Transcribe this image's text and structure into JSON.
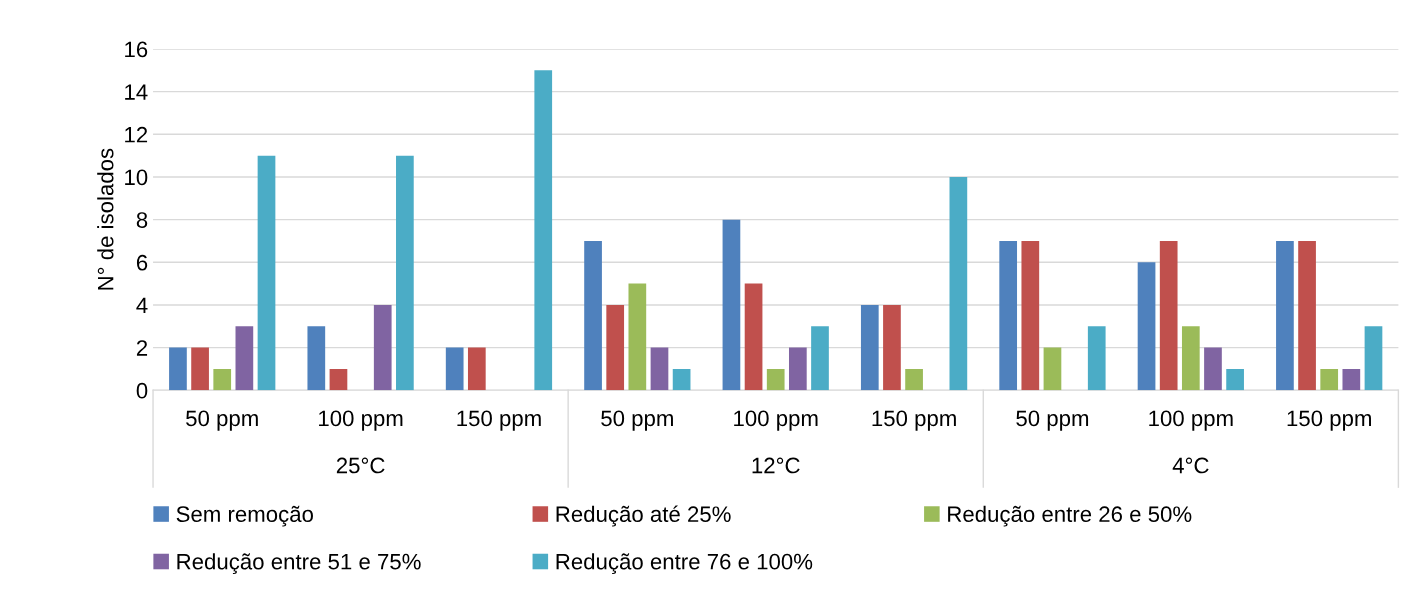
{
  "chart_data": {
    "type": "bar",
    "categories": [
      "50 ppm",
      "100 ppm",
      "150 ppm",
      "50 ppm",
      "100 ppm",
      "150 ppm",
      "50 ppm",
      "100 ppm",
      "150 ppm"
    ],
    "annotations": [
      "25°C",
      "12°C",
      "4°C"
    ],
    "ylabel": "N° de isolados",
    "series": [
      {
        "name": "Sem remoção",
        "color": "#4f81bd",
        "values": [
          2,
          3,
          2,
          7,
          8,
          4,
          7,
          6,
          7
        ]
      },
      {
        "name": "Redução até 25%",
        "color": "#c0504d",
        "values": [
          2,
          1,
          2,
          4,
          5,
          4,
          7,
          7,
          7
        ]
      },
      {
        "name": "Redução entre 26 e 50%",
        "color": "#9bbb59",
        "values": [
          1,
          0,
          0,
          5,
          1,
          1,
          2,
          3,
          1
        ]
      },
      {
        "name": "Redução entre 51 e 75%",
        "color": "#8064a2",
        "values": [
          3,
          4,
          0,
          2,
          2,
          0,
          0,
          2,
          1
        ]
      },
      {
        "name": "Redução entre 76 e 100%",
        "color": "#4bacc6",
        "values": [
          11,
          11,
          15,
          1,
          3,
          10,
          3,
          1,
          3
        ]
      }
    ],
    "ylim": [
      0,
      16
    ],
    "yticks": [
      0,
      2,
      4,
      6,
      8,
      10,
      12,
      14,
      16
    ],
    "grid": "y",
    "legend": "bottom"
  }
}
